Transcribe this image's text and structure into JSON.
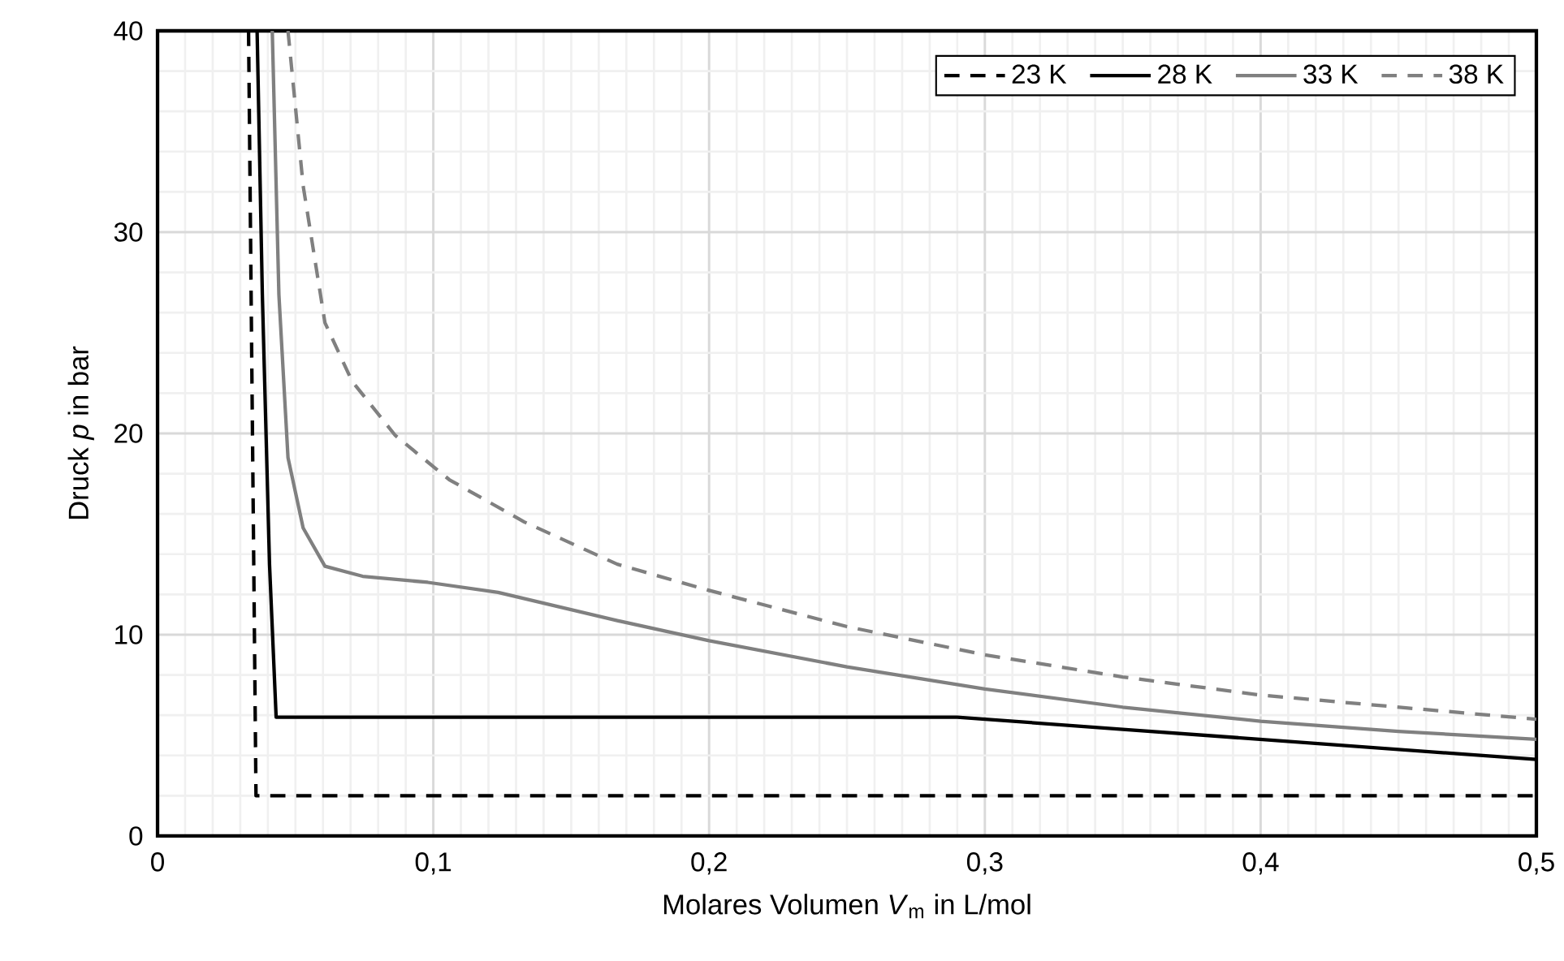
{
  "chart_data": {
    "type": "line",
    "xlabel": "Molares Volumen *V*$_{m}$ in L/mol",
    "ylabel": "Druck *p* in bar",
    "xlim": [
      0,
      0.5
    ],
    "ylim": [
      0,
      40
    ],
    "xticks": [
      0,
      {
        "value": 0.1,
        "label": "0,1"
      },
      {
        "value": 0.2,
        "label": "0,2"
      },
      {
        "value": 0.3,
        "label": "0,3"
      },
      {
        "value": 0.4,
        "label": "0,4"
      },
      {
        "value": 0.5,
        "label": "0,5"
      }
    ],
    "yticks": [
      0,
      10,
      20,
      30,
      40
    ],
    "grid": true,
    "legend": "top right",
    "marker": "none",
    "series": [
      {
        "name": "23 K",
        "color": "#000000",
        "line_style": "dashed",
        "x": [
          0.033,
          0.0357,
          0.5
        ],
        "values": [
          40,
          2,
          2
        ]
      },
      {
        "name": "28 K",
        "color": "#000000",
        "line_style": "solid",
        "x": [
          0.0361,
          0.038,
          0.0406,
          0.043,
          0.29,
          0.35,
          0.4,
          0.45,
          0.5
        ],
        "values": [
          40,
          26.9,
          13.5,
          5.9,
          5.9,
          5.3,
          4.8,
          4.3,
          3.8
        ]
      },
      {
        "name": "33 K",
        "color": "#808080",
        "line_style": "solid",
        "x": [
          0.0416,
          0.044,
          0.0473,
          0.0528,
          0.0607,
          0.0744,
          0.098,
          0.1235,
          0.1667,
          0.2,
          0.25,
          0.3,
          0.35,
          0.4,
          0.45,
          0.5
        ],
        "values": [
          40,
          26.9,
          18.8,
          15.3,
          13.4,
          12.9,
          12.6,
          12.1,
          10.7,
          9.7,
          8.4,
          7.3,
          6.4,
          5.7,
          5.2,
          4.8
        ]
      },
      {
        "name": "38 K",
        "color": "#808080",
        "line_style": "dashed",
        "x": [
          0.0473,
          0.0528,
          0.0607,
          0.0705,
          0.0862,
          0.1058,
          0.133,
          0.1667,
          0.2,
          0.25,
          0.3,
          0.35,
          0.4,
          0.45,
          0.5
        ],
        "values": [
          40,
          32.3,
          25.5,
          22.6,
          19.9,
          17.7,
          15.6,
          13.5,
          12.2,
          10.4,
          9.0,
          7.9,
          7.0,
          6.4,
          5.8
        ]
      }
    ]
  }
}
